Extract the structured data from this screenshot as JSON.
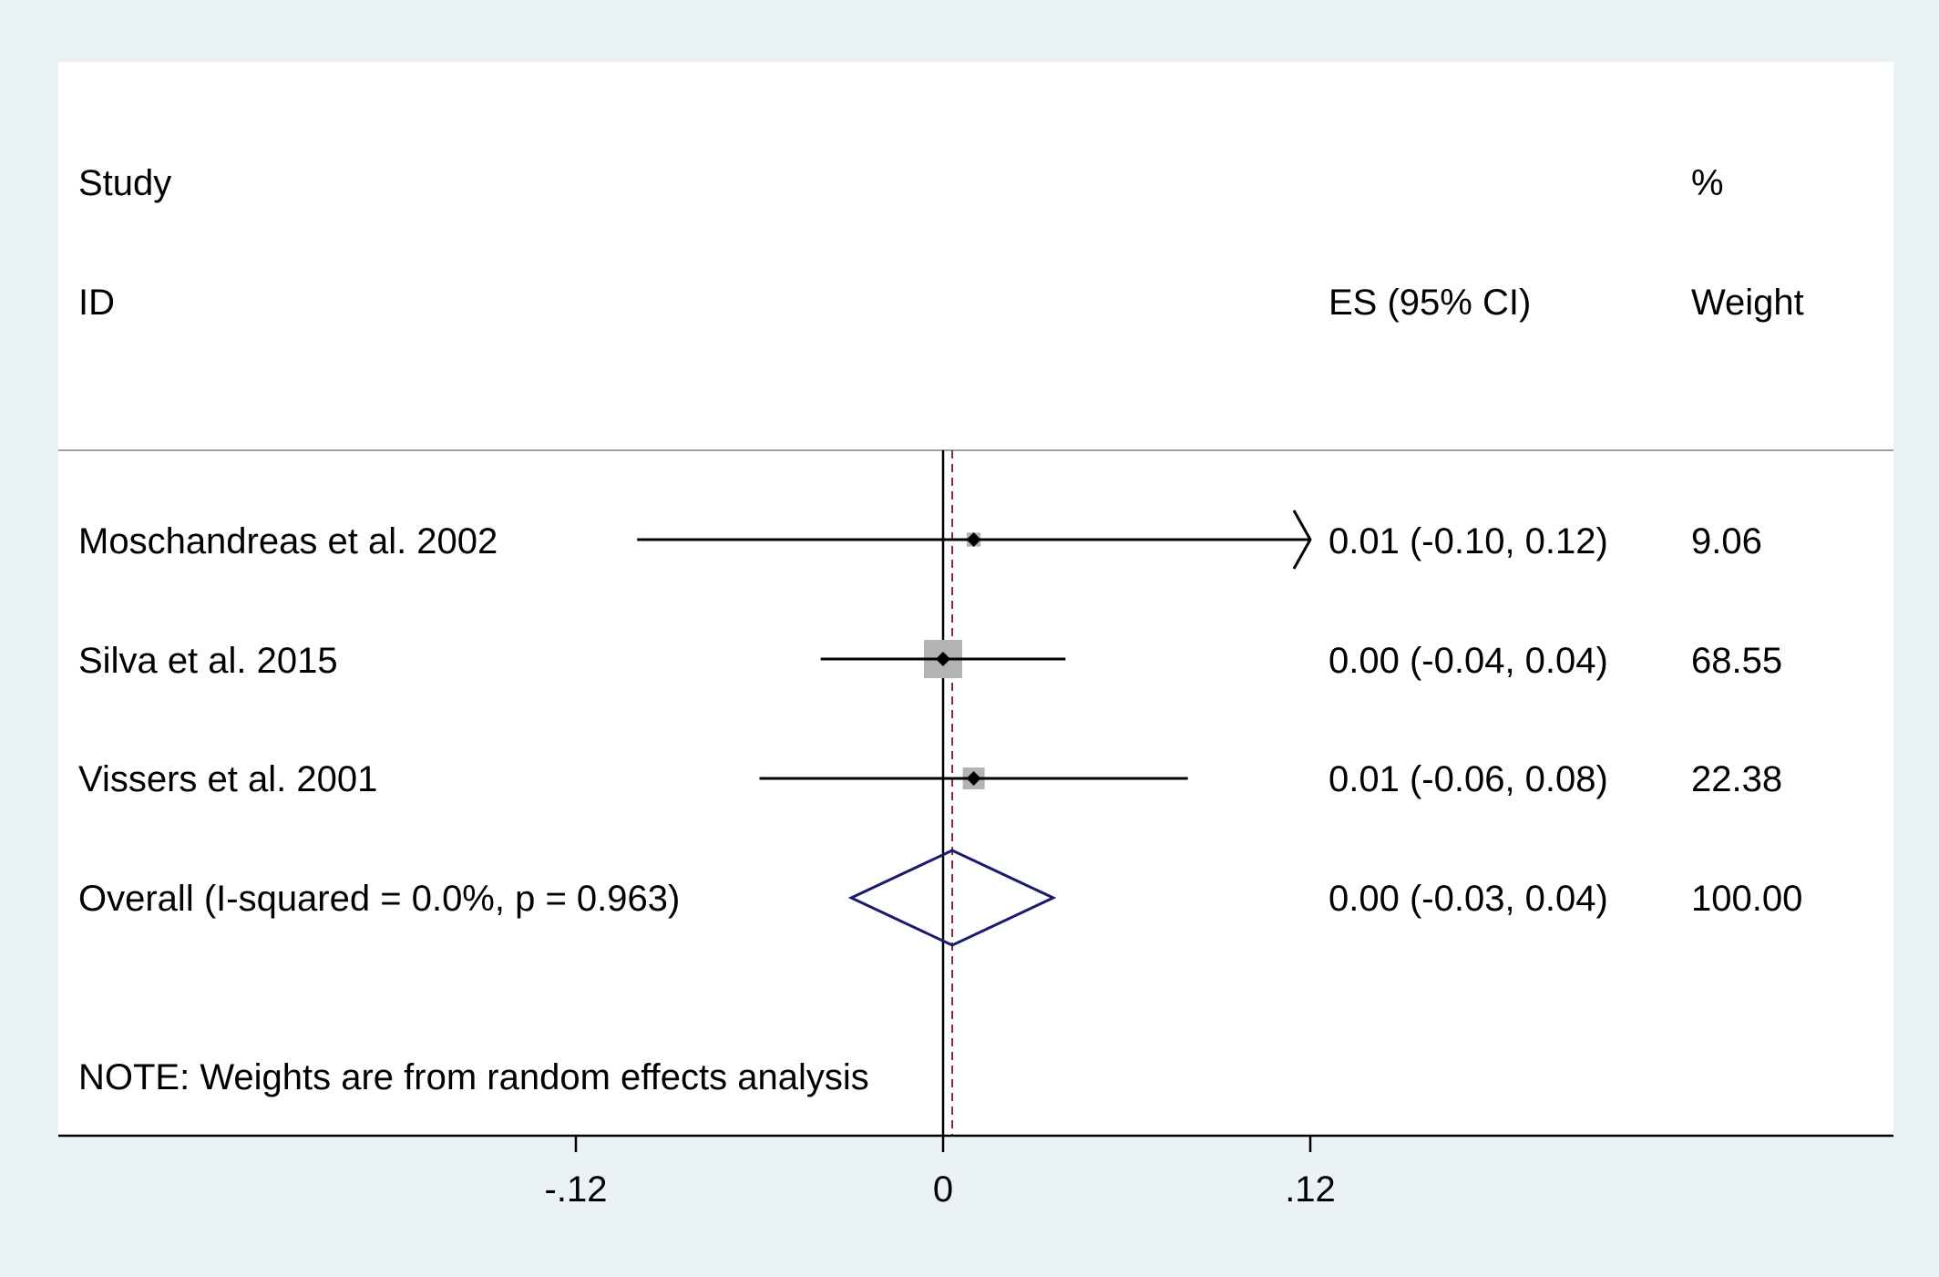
{
  "chart_data": {
    "type": "forest",
    "header": {
      "study_line1": "Study",
      "study_line2": "ID",
      "es_header": "ES (95% CI)",
      "weight_line1": "%",
      "weight_line2": "Weight"
    },
    "studies": [
      {
        "name": "Moschandreas et al. 2002",
        "es": 0.01,
        "lower": -0.1,
        "upper": 0.12,
        "ci_text": "0.01 (-0.10, 0.12)",
        "weight": 9.06,
        "weight_text": "9.06",
        "upper_arrow": true
      },
      {
        "name": "Silva et al. 2015",
        "es": 0.0,
        "lower": -0.04,
        "upper": 0.04,
        "ci_text": "0.00 (-0.04, 0.04)",
        "weight": 68.55,
        "weight_text": "68.55",
        "upper_arrow": false
      },
      {
        "name": "Vissers et al. 2001",
        "es": 0.01,
        "lower": -0.06,
        "upper": 0.08,
        "ci_text": "0.01 (-0.06, 0.08)",
        "weight": 22.38,
        "weight_text": "22.38",
        "upper_arrow": false
      }
    ],
    "overall": {
      "name": "Overall  (I-squared = 0.0%, p = 0.963)",
      "es": 0.003,
      "lower": -0.03,
      "upper": 0.036,
      "ci_text": "0.00 (-0.03, 0.04)",
      "weight_text": "100.00"
    },
    "note": "NOTE: Weights are from random effects analysis",
    "x_axis": {
      "ticks": [
        -0.12,
        0,
        0.12
      ],
      "tick_labels": [
        "-.12",
        "0",
        ".12"
      ],
      "xlim": [
        -0.29,
        0.31
      ],
      "null_line": 0
    },
    "colors": {
      "background": "#eaf2f3",
      "plot_background": "#ffffff",
      "ci_line": "#000000",
      "weight_box": "#b3b3b3",
      "point": "#000000",
      "diamond": "#1a1a6e",
      "overall_line": "#8b2a2a",
      "separator": "#a0a0a0"
    }
  }
}
